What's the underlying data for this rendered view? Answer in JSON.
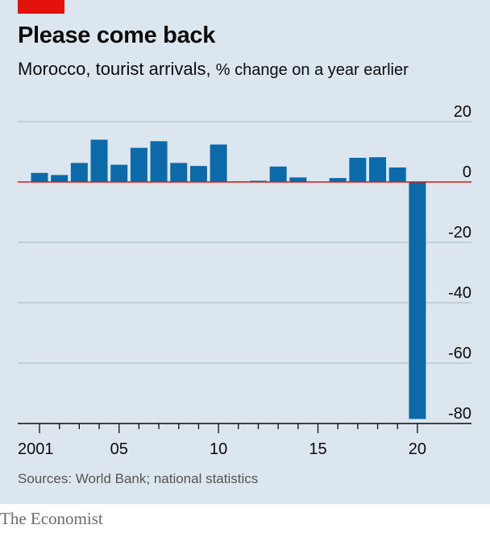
{
  "header": {
    "title": "Please come back",
    "subtitle_main": "Morocco, tourist arrivals,",
    "subtitle_unit": "% change on a year earlier"
  },
  "footer": {
    "source": "Sources: World Bank; national statistics",
    "brand": "The Economist"
  },
  "colors": {
    "bar": "#0d6aa8",
    "zero_line": "#e3120b",
    "grid": "#b4c4cf",
    "background": "#dbe6ee",
    "tag": "#e3120b"
  },
  "chart_data": {
    "type": "bar",
    "title": "Please come back",
    "subtitle": "Morocco, tourist arrivals, % change on a year earlier",
    "xlabel": "",
    "ylabel": "% change on a year earlier",
    "categories": [
      2001,
      2002,
      2003,
      2004,
      2005,
      2006,
      2007,
      2008,
      2009,
      2010,
      2011,
      2012,
      2013,
      2014,
      2015,
      2016,
      2017,
      2018,
      2019,
      2020
    ],
    "values": [
      3,
      2.3,
      6.3,
      14,
      5.7,
      11.3,
      13.5,
      6.3,
      5.3,
      12.4,
      0.2,
      0.4,
      5.1,
      1.5,
      0.1,
      1.3,
      8.0,
      8.2,
      4.8,
      -78.5
    ],
    "ylim": [
      -80,
      20
    ],
    "yticks": [
      20,
      0,
      -20,
      -40,
      -60,
      -80
    ],
    "ytick_labels": [
      "20",
      "0",
      "-20",
      "-40",
      "-60",
      "-80"
    ],
    "xticks_labeled": [
      2001,
      2005,
      2010,
      2015,
      2020
    ],
    "xtick_labels": [
      "2001",
      "05",
      "10",
      "15",
      "20"
    ],
    "grid": true,
    "legend": "none"
  }
}
